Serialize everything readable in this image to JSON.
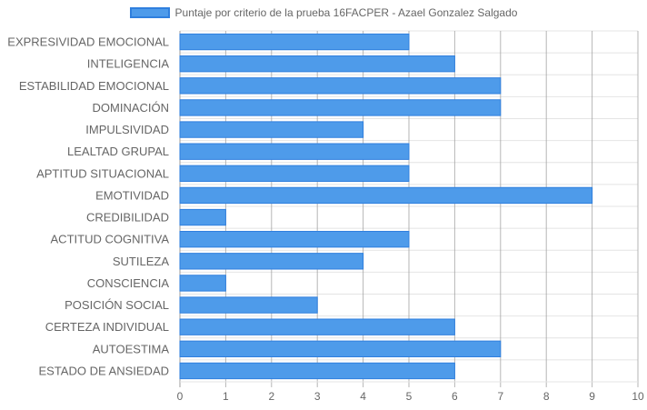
{
  "chart_data": {
    "type": "bar",
    "orientation": "horizontal",
    "title": "",
    "legend": {
      "position": "top",
      "labels": [
        "Puntaje por criterio de la prueba 16FACPER - Azael Gonzalez Salgado"
      ]
    },
    "categories": [
      "EXPRESIVIDAD EMOCIONAL",
      "INTELIGENCIA",
      "ESTABILIDAD EMOCIONAL",
      "DOMINACIÓN",
      "IMPULSIVIDAD",
      "LEALTAD GRUPAL",
      "APTITUD SITUACIONAL",
      "EMOTIVIDAD",
      "CREDIBILIDAD",
      "ACTITUD COGNITIVA",
      "SUTILEZA",
      "CONSCIENCIA",
      "POSICIÓN SOCIAL",
      "CERTEZA INDIVIDUAL",
      "AUTOESTIMA",
      "ESTADO DE ANSIEDAD"
    ],
    "series": [
      {
        "name": "Puntaje por criterio de la prueba 16FACPER - Azael Gonzalez Salgado",
        "values": [
          5,
          6,
          7,
          7,
          4,
          5,
          5,
          9,
          1,
          5,
          4,
          1,
          3,
          6,
          7,
          6
        ]
      }
    ],
    "xlim": [
      0,
      10
    ],
    "xticks": [
      "0",
      "1",
      "2",
      "3",
      "4",
      "5",
      "6",
      "7",
      "8",
      "9",
      "10"
    ],
    "grid": true,
    "colors": {
      "bar_fill": "#4e9bea",
      "bar_border": "#2f7fde",
      "grid": "#e4e4e4",
      "grid_major": "#9e9e9e",
      "text": "#666666"
    }
  }
}
